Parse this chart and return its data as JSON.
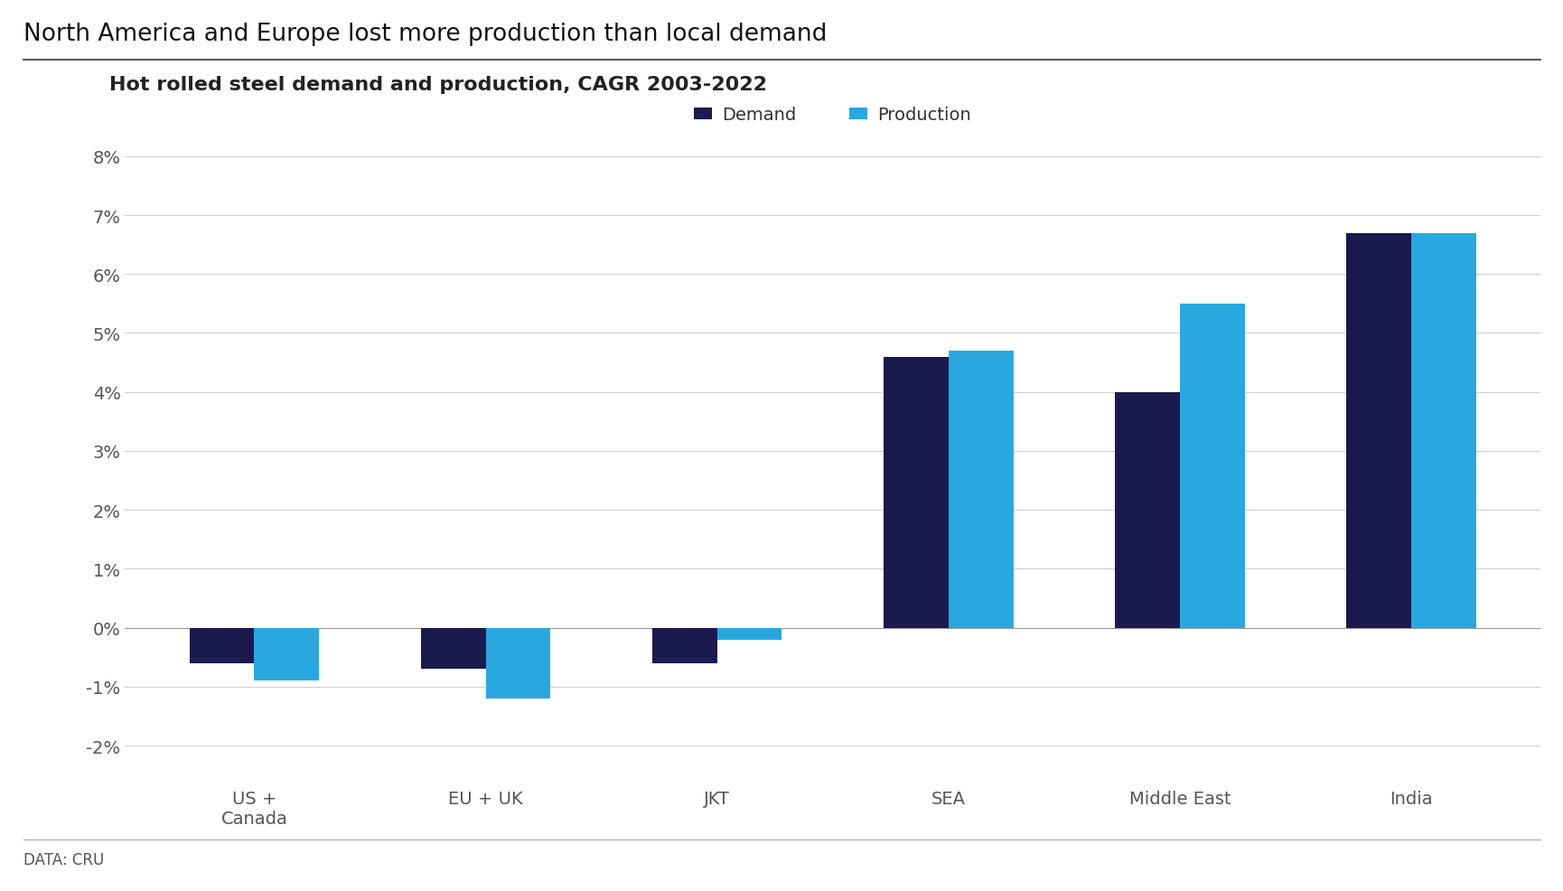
{
  "title": "North America and Europe lost more production than local demand",
  "subtitle": "Hot rolled steel demand and production, CAGR 2003-2022",
  "footnote": "DATA: CRU",
  "categories": [
    "US +\nCanada",
    "EU + UK",
    "JKT",
    "SEA",
    "Middle East",
    "India"
  ],
  "demand": [
    -0.006,
    -0.007,
    -0.006,
    0.046,
    0.04,
    0.067
  ],
  "production": [
    -0.009,
    -0.012,
    -0.002,
    0.047,
    0.055,
    0.067
  ],
  "demand_color": "#1a1a4e",
  "production_color": "#29a8e0",
  "legend_labels": [
    "Demand",
    "Production"
  ],
  "ylim": [
    -0.025,
    0.09
  ],
  "yticks": [
    -0.02,
    -0.01,
    0.0,
    0.01,
    0.02,
    0.03,
    0.04,
    0.05,
    0.06,
    0.07,
    0.08
  ],
  "background_color": "#ffffff",
  "title_fontsize": 19,
  "subtitle_fontsize": 16,
  "tick_fontsize": 14,
  "label_fontsize": 14,
  "footnote_fontsize": 12,
  "legend_fontsize": 14,
  "bar_width": 0.28
}
